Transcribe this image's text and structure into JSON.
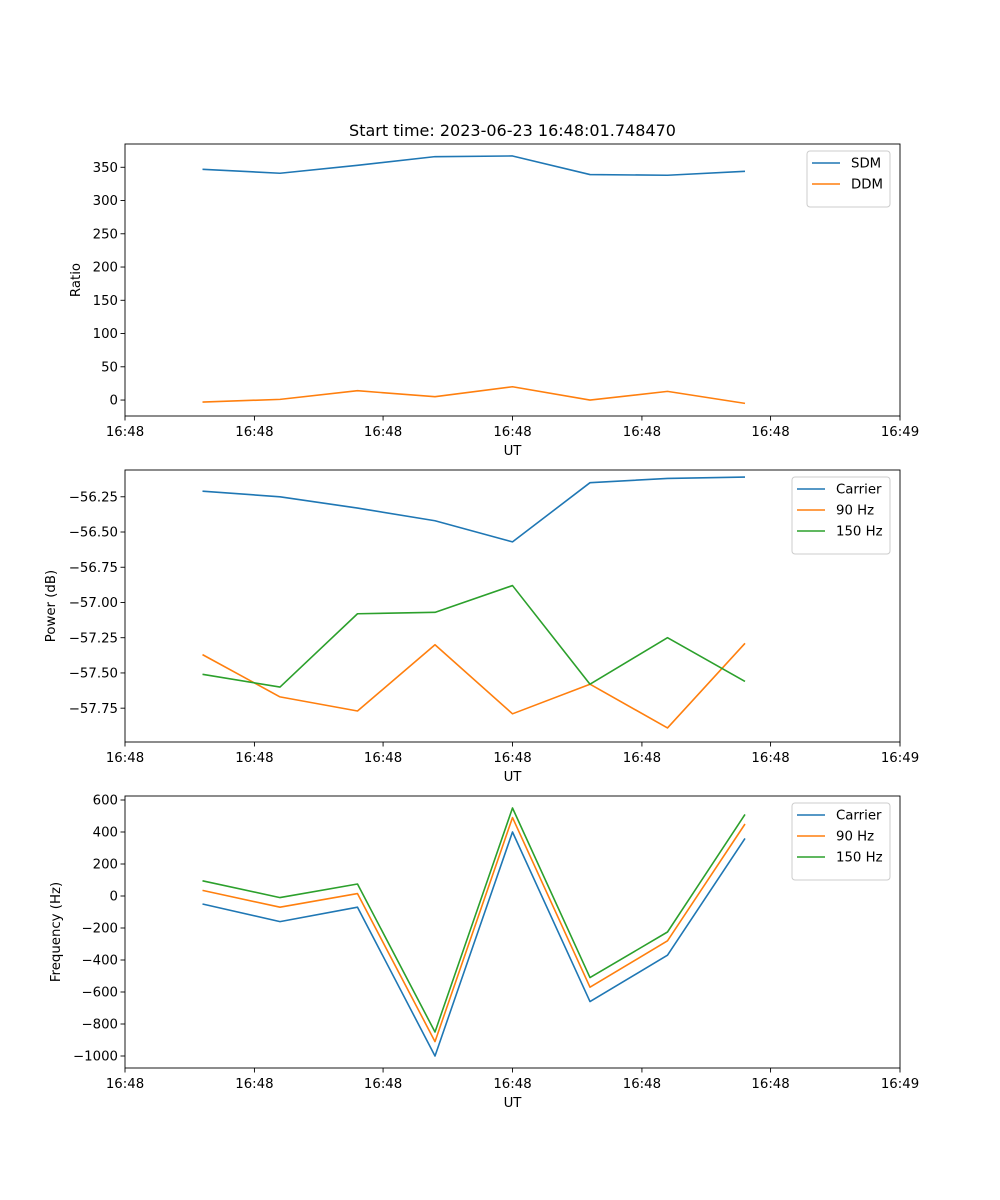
{
  "figure": {
    "title": "Start time: 2023-06-23 16:48:01.748470"
  },
  "chart_data": [
    {
      "type": "line",
      "title": "Start time: 2023-06-23 16:48:01.748470",
      "xlabel": "UT",
      "ylabel": "Ratio",
      "x": [
        1,
        2,
        3,
        4,
        5,
        6,
        7,
        8
      ],
      "xlim": [
        0,
        10
      ],
      "xticks": [
        0,
        1.67,
        3.33,
        5,
        6.67,
        8.33,
        10
      ],
      "xtick_labels": [
        "16:48",
        "16:48",
        "16:48",
        "16:48",
        "16:48",
        "16:48",
        "16:49"
      ],
      "ylim": [
        -24,
        385
      ],
      "yticks": [
        0,
        50,
        100,
        150,
        200,
        250,
        300,
        350
      ],
      "ytick_labels": [
        "0",
        "50",
        "100",
        "150",
        "200",
        "250",
        "300",
        "350"
      ],
      "legend": "top-right",
      "grid": false,
      "series": [
        {
          "name": "SDM",
          "color": "#1f77b4",
          "values": [
            347,
            341,
            353,
            366,
            367,
            339,
            338,
            344
          ]
        },
        {
          "name": "DDM",
          "color": "#ff7f0e",
          "values": [
            -3,
            1,
            14,
            5,
            20,
            0,
            13,
            -5
          ]
        }
      ]
    },
    {
      "type": "line",
      "title": "",
      "xlabel": "UT",
      "ylabel": "Power (dB)",
      "x": [
        1,
        2,
        3,
        4,
        5,
        6,
        7,
        8
      ],
      "xlim": [
        0,
        10
      ],
      "xticks": [
        0,
        1.67,
        3.33,
        5,
        6.67,
        8.33,
        10
      ],
      "xtick_labels": [
        "16:48",
        "16:48",
        "16:48",
        "16:48",
        "16:48",
        "16:48",
        "16:49"
      ],
      "ylim": [
        -57.99,
        -56.06
      ],
      "yticks": [
        -57.75,
        -57.5,
        -57.25,
        -57.0,
        -56.75,
        -56.5,
        -56.25
      ],
      "ytick_labels": [
        "−57.75",
        "−57.50",
        "−57.25",
        "−57.00",
        "−56.75",
        "−56.50",
        "−56.25"
      ],
      "legend": "top-right",
      "grid": false,
      "series": [
        {
          "name": "Carrier",
          "color": "#1f77b4",
          "values": [
            -56.21,
            -56.25,
            -56.33,
            -56.42,
            -56.57,
            -56.15,
            -56.12,
            -56.11
          ]
        },
        {
          "name": "90 Hz",
          "color": "#ff7f0e",
          "values": [
            -57.37,
            -57.67,
            -57.77,
            -57.3,
            -57.79,
            -57.58,
            -57.89,
            -57.29
          ]
        },
        {
          "name": "150 Hz",
          "color": "#2ca02c",
          "values": [
            -57.51,
            -57.6,
            -57.08,
            -57.07,
            -56.88,
            -57.58,
            -57.25,
            -57.56
          ]
        }
      ]
    },
    {
      "type": "line",
      "title": "",
      "xlabel": "UT",
      "ylabel": "Frequency (Hz)",
      "x": [
        1,
        2,
        3,
        4,
        5,
        6,
        7,
        8
      ],
      "xlim": [
        0,
        10
      ],
      "xticks": [
        0,
        1.67,
        3.33,
        5,
        6.67,
        8.33,
        10
      ],
      "xtick_labels": [
        "16:48",
        "16:48",
        "16:48",
        "16:48",
        "16:48",
        "16:48",
        "16:49"
      ],
      "ylim": [
        -1075,
        625
      ],
      "yticks": [
        -1000,
        -800,
        -600,
        -400,
        -200,
        0,
        200,
        400,
        600
      ],
      "ytick_labels": [
        "−1000",
        "−800",
        "−600",
        "−400",
        "−200",
        "0",
        "200",
        "400",
        "600"
      ],
      "legend": "top-right",
      "grid": false,
      "series": [
        {
          "name": "Carrier",
          "color": "#1f77b4",
          "values": [
            -50,
            -160,
            -70,
            -1000,
            400,
            -660,
            -370,
            360
          ]
        },
        {
          "name": "90 Hz",
          "color": "#ff7f0e",
          "values": [
            35,
            -70,
            15,
            -910,
            490,
            -570,
            -280,
            450
          ]
        },
        {
          "name": "150 Hz",
          "color": "#2ca02c",
          "values": [
            95,
            -10,
            75,
            -850,
            550,
            -510,
            -225,
            510
          ]
        }
      ]
    }
  ]
}
